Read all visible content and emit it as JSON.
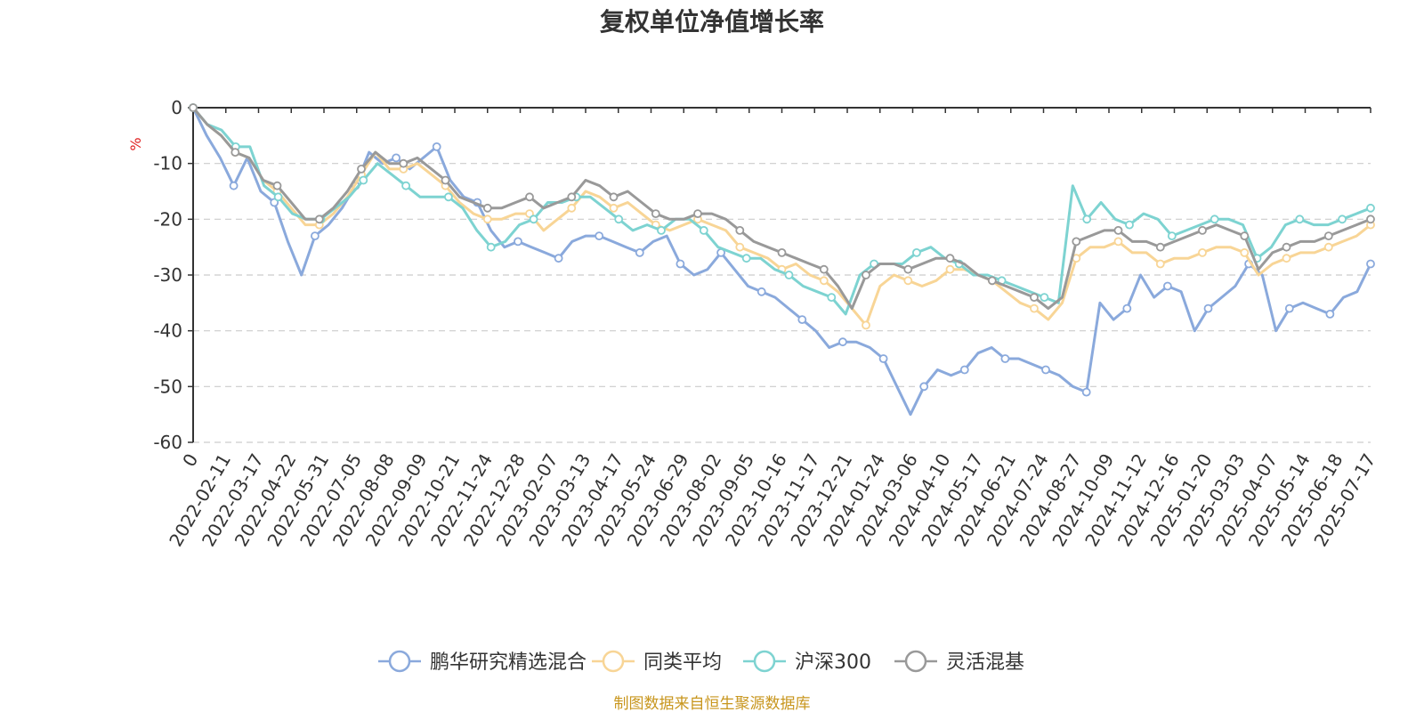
{
  "chart_data": {
    "type": "line",
    "title": "复权单位净值增长率",
    "ylabel": "%",
    "ylim": [
      -60,
      0
    ],
    "yticks": [
      0,
      -10,
      -20,
      -30,
      -40,
      -50,
      -60
    ],
    "grid": "horizontal dashed",
    "legend_position": "bottom-center",
    "x_tick_labels": [
      "0",
      "2022-02-11",
      "2022-03-17",
      "2022-04-22",
      "2022-05-31",
      "2022-07-05",
      "2022-08-08",
      "2022-09-09",
      "2022-10-21",
      "2022-11-24",
      "2022-12-28",
      "2023-02-07",
      "2023-03-13",
      "2023-04-17",
      "2023-05-24",
      "2023-06-29",
      "2023-08-02",
      "2023-09-05",
      "2023-10-16",
      "2023-11-17",
      "2023-12-21",
      "2024-01-24",
      "2024-03-06",
      "2024-04-10",
      "2024-05-17",
      "2024-06-21",
      "2024-07-24",
      "2024-08-27",
      "2024-10-09",
      "2024-11-12",
      "2024-12-16",
      "2025-01-20",
      "2025-03-03",
      "2025-04-07",
      "2025-05-14",
      "2025-06-18",
      "2025-07-17"
    ],
    "series": [
      {
        "name": "鹏华研究精选混合",
        "color": "#8aa9dc",
        "values": [
          0,
          -5,
          -9,
          -14,
          -9,
          -15,
          -17,
          -24,
          -30,
          -23,
          -21,
          -18,
          -14,
          -8,
          -10,
          -9,
          -11,
          -9,
          -7,
          -13,
          -16,
          -17,
          -22,
          -25,
          -24,
          -25,
          -26,
          -27,
          -24,
          -23,
          -23,
          -24,
          -25,
          -26,
          -24,
          -23,
          -28,
          -30,
          -29,
          -26,
          -29,
          -32,
          -33,
          -34,
          -36,
          -38,
          -40,
          -43,
          -42,
          -42,
          -43,
          -45,
          -50,
          -55,
          -50,
          -47,
          -48,
          -47,
          -44,
          -43,
          -45,
          -45,
          -46,
          -47,
          -48,
          -50,
          -51,
          -35,
          -38,
          -36,
          -30,
          -34,
          -32,
          -33,
          -40,
          -36,
          -34,
          -32,
          -28,
          -30,
          -40,
          -36,
          -35,
          -36,
          -37,
          -34,
          -33,
          -28
        ]
      },
      {
        "name": "同类平均",
        "color": "#f8d596",
        "values": [
          0,
          -3,
          -5,
          -8,
          -9,
          -13,
          -15,
          -18,
          -21,
          -21,
          -19,
          -16,
          -12,
          -8,
          -11,
          -11,
          -10,
          -12,
          -14,
          -17,
          -19,
          -20,
          -20,
          -19,
          -19,
          -22,
          -20,
          -18,
          -15,
          -16,
          -18,
          -17,
          -19,
          -21,
          -22,
          -21,
          -20,
          -21,
          -22,
          -25,
          -26,
          -27,
          -29,
          -28,
          -30,
          -31,
          -33,
          -36,
          -39,
          -32,
          -30,
          -31,
          -32,
          -31,
          -29,
          -29,
          -30,
          -31,
          -33,
          -35,
          -36,
          -38,
          -35,
          -27,
          -25,
          -25,
          -24,
          -26,
          -26,
          -28,
          -27,
          -27,
          -26,
          -25,
          -25,
          -26,
          -30,
          -28,
          -27,
          -26,
          -26,
          -25,
          -24,
          -23,
          -21
        ]
      },
      {
        "name": "沪深300",
        "color": "#7dd3d1",
        "values": [
          0,
          -3,
          -4,
          -7,
          -7,
          -14,
          -16,
          -19,
          -20,
          -20,
          -18,
          -16,
          -13,
          -10,
          -12,
          -14,
          -16,
          -16,
          -16,
          -18,
          -22,
          -25,
          -24,
          -21,
          -20,
          -17,
          -17,
          -16,
          -16,
          -18,
          -20,
          -22,
          -21,
          -22,
          -20,
          -20,
          -22,
          -25,
          -26,
          -27,
          -27,
          -29,
          -30,
          -32,
          -33,
          -34,
          -37,
          -30,
          -28,
          -28,
          -28,
          -26,
          -25,
          -27,
          -28,
          -30,
          -30,
          -31,
          -32,
          -33,
          -34,
          -35,
          -14,
          -20,
          -17,
          -20,
          -21,
          -19,
          -20,
          -23,
          -22,
          -21,
          -20,
          -20,
          -21,
          -27,
          -25,
          -21,
          -20,
          -21,
          -21,
          -20,
          -19,
          -18
        ]
      },
      {
        "name": "灵活混基",
        "color": "#999999",
        "values": [
          0,
          -3,
          -5,
          -8,
          -9,
          -13,
          -14,
          -17,
          -20,
          -20,
          -18,
          -15,
          -11,
          -8,
          -10,
          -10,
          -9,
          -11,
          -13,
          -16,
          -17,
          -18,
          -18,
          -17,
          -16,
          -18,
          -17,
          -16,
          -13,
          -14,
          -16,
          -15,
          -17,
          -19,
          -20,
          -20,
          -19,
          -19,
          -20,
          -22,
          -24,
          -25,
          -26,
          -27,
          -28,
          -29,
          -32,
          -36,
          -30,
          -28,
          -28,
          -29,
          -28,
          -27,
          -27,
          -28,
          -30,
          -31,
          -32,
          -33,
          -34,
          -36,
          -34,
          -24,
          -23,
          -22,
          -22,
          -24,
          -24,
          -25,
          -24,
          -23,
          -22,
          -21,
          -22,
          -23,
          -29,
          -26,
          -25,
          -24,
          -24,
          -23,
          -22,
          -21,
          -20
        ]
      }
    ]
  },
  "footer": {
    "source": "制图数据来自恒生聚源数据库"
  }
}
